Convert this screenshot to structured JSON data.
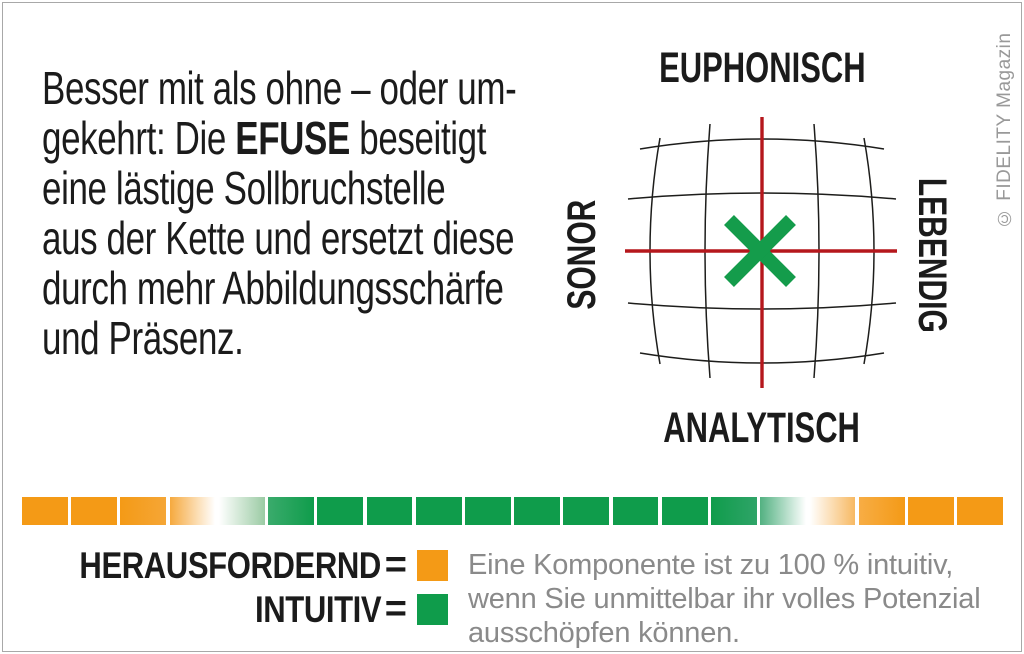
{
  "copyright": "© FIDELITY Magazin",
  "intro": {
    "lines": [
      {
        "pre": "Besser mit als ohne – oder um-",
        "bold": "",
        "post": ""
      },
      {
        "pre": "gekehrt: Die ",
        "bold": "EFUSE",
        "post": " beseitigt"
      },
      {
        "pre": "eine lästige Sollbruchstelle",
        "bold": "",
        "post": ""
      },
      {
        "pre": "aus der Kette und ersetzt diese",
        "bold": "",
        "post": ""
      },
      {
        "pre": "durch mehr Abbildungsschärfe",
        "bold": "",
        "post": ""
      },
      {
        "pre": "und Präsenz.",
        "bold": "",
        "post": ""
      }
    ]
  },
  "chart_data": [
    {
      "type": "scatter",
      "axis_labels": {
        "top": "EUPHONISCH",
        "bottom": "ANALYTISCH",
        "left": "SONOR",
        "right": "LEBENDIG"
      },
      "x_range": [
        -1,
        1
      ],
      "y_range": [
        -1,
        1
      ],
      "grid": "barrel-distorted 5x5 grid with red center crosshair",
      "crosshair_color": "#b5171c",
      "grid_color": "#1d1d1b",
      "points": [
        {
          "x": -0.015,
          "y": 0.0,
          "marker": "x",
          "color": "#149c4b",
          "label": "EFUSE rating position"
        }
      ]
    },
    {
      "type": "scale-bar",
      "description": "20-segment intuitiv/herausfordernd scale, orange at both ends, green in the middle",
      "orange": "#f49a16",
      "green": "#0f9c4b",
      "segments": [
        [
          "#f49a16",
          "#f49a16"
        ],
        [
          "#f49a16",
          "#f49a16"
        ],
        [
          "#f49a16",
          "#f5a636"
        ],
        [
          "#f6a93e",
          "#ffffff"
        ],
        [
          "#ffffff",
          "#9bcba4"
        ],
        [
          "#3aab6c",
          "#0f9c4b"
        ],
        [
          "#0f9c4b",
          "#0f9c4b"
        ],
        [
          "#0f9c4b",
          "#0f9c4b"
        ],
        [
          "#0f9c4b",
          "#0f9c4b"
        ],
        [
          "#0f9c4b",
          "#0f9c4b"
        ],
        [
          "#0f9c4b",
          "#0f9c4b"
        ],
        [
          "#0f9c4b",
          "#0f9c4b"
        ],
        [
          "#0f9c4b",
          "#0f9c4b"
        ],
        [
          "#0f9c4b",
          "#0f9c4b"
        ],
        [
          "#0f9c4b",
          "#2fa468"
        ],
        [
          "#52b181",
          "#ffffff"
        ],
        [
          "#ffffff",
          "#f7b963"
        ],
        [
          "#f7ad45",
          "#f49a16"
        ],
        [
          "#f49a16",
          "#f49a16"
        ],
        [
          "#f49a16",
          "#f49a16"
        ]
      ]
    }
  ],
  "legend": {
    "items": [
      {
        "label": "HERAUSFORDERND",
        "eq": "=",
        "color": "#f49a16"
      },
      {
        "label": "INTUITIV",
        "eq": "=",
        "color": "#0f9c4b"
      }
    ]
  },
  "explainer": {
    "lines": [
      "Eine Komponente ist zu 100 % intuitiv,",
      "wenn Sie unmittelbar ihr volles Potenzial",
      "ausschöpfen können."
    ]
  }
}
